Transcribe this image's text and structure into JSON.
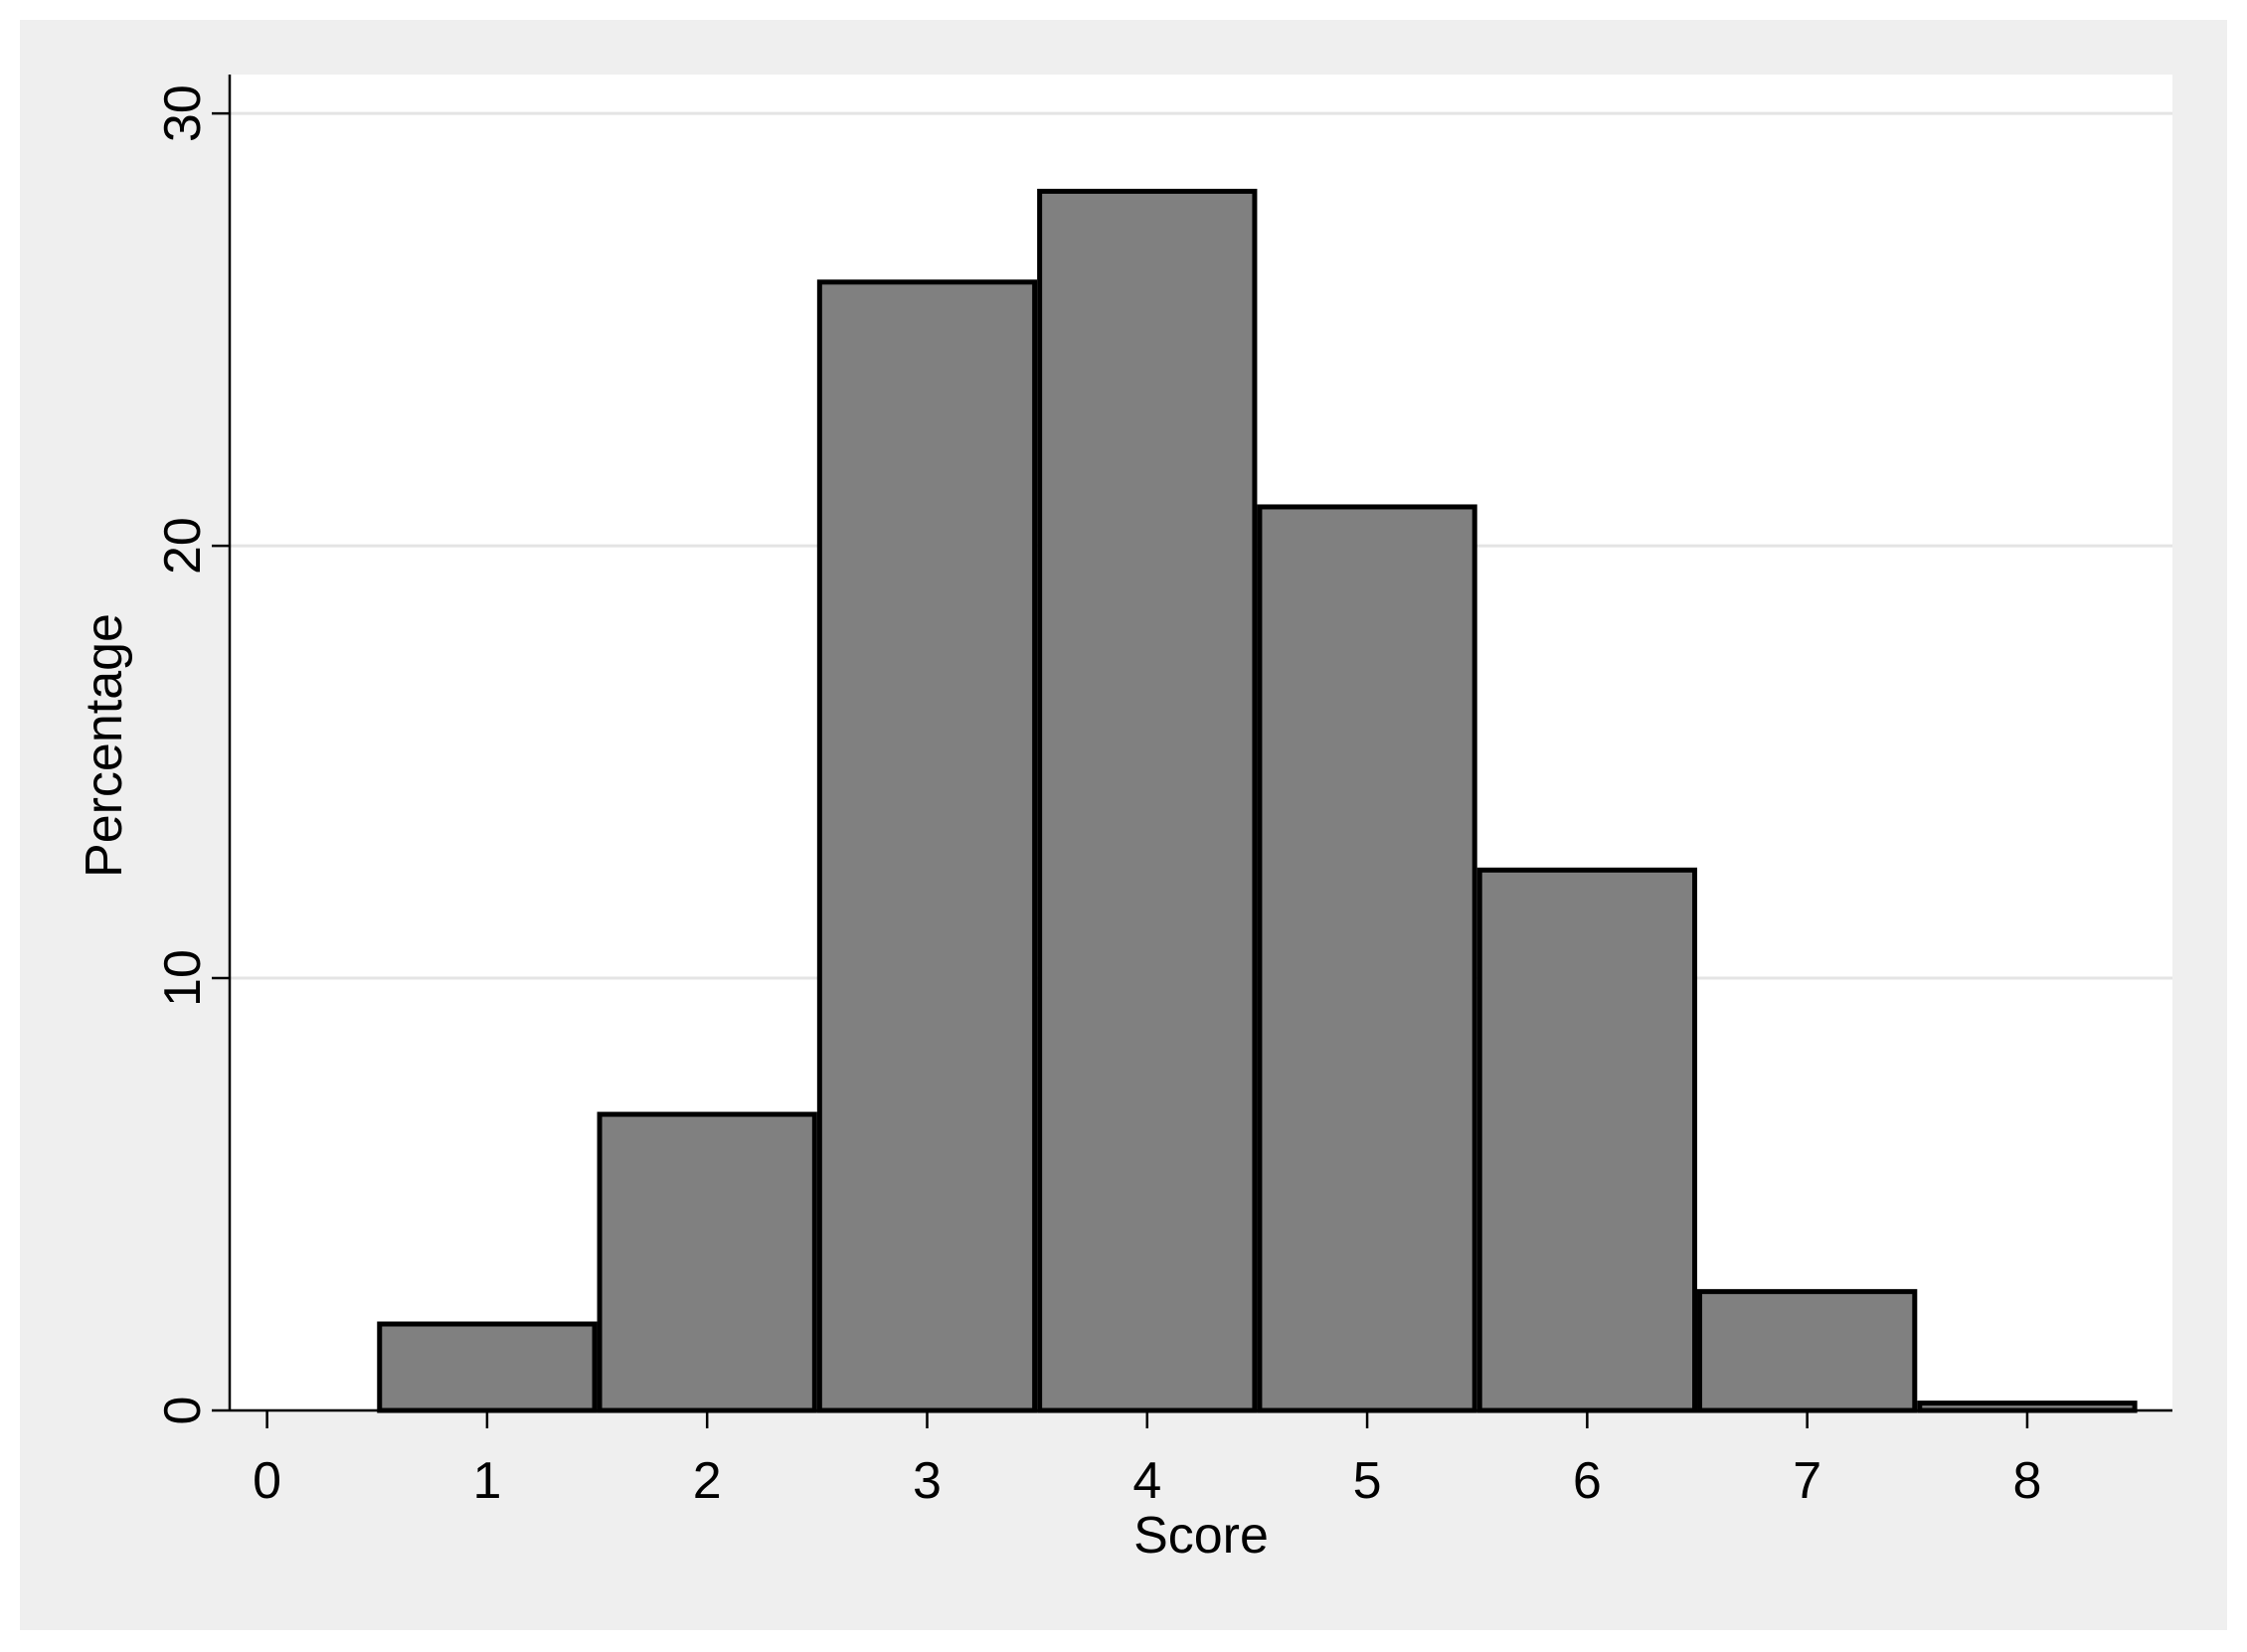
{
  "chart_data": {
    "type": "histogram",
    "x_label": "Score",
    "y_label": "Percentage",
    "bins": [
      0.5,
      1.5,
      2.5,
      3.5,
      4.5,
      5.5,
      6.5,
      7.5,
      8.5
    ],
    "values": [
      2.0,
      6.85,
      26.1,
      28.2,
      20.9,
      12.5,
      2.75,
      0.17
    ],
    "color": "#808080",
    "xlim": [
      -0.17,
      8.66
    ],
    "xticks": [
      0,
      1,
      2,
      3,
      4,
      5,
      6,
      7,
      8
    ],
    "ylim": [
      0,
      30.9
    ],
    "yticks": [
      0,
      10,
      20,
      30
    ],
    "grid": true
  }
}
